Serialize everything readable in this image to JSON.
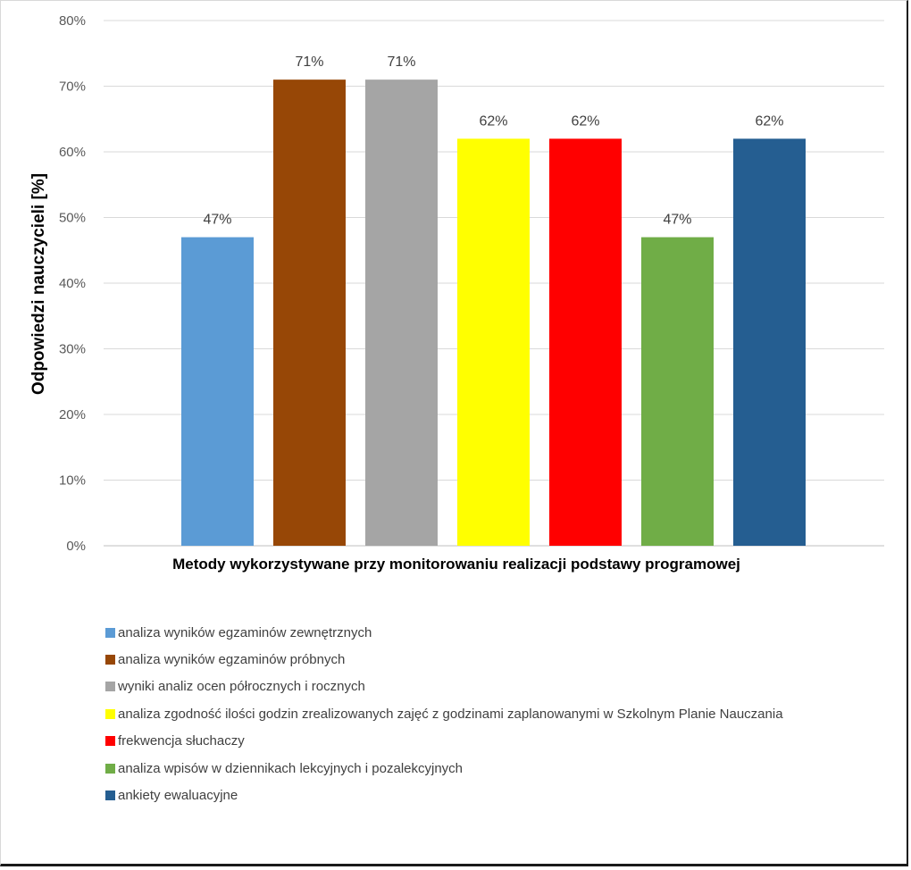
{
  "chart_data": {
    "type": "bar",
    "title": "",
    "xlabel": "Metody wykorzystywane przy monitorowaniu realizacji podstawy programowej",
    "ylabel": "Odpowiedzi nauczycieli [%]",
    "ylim": [
      0,
      80
    ],
    "yticks": [
      "0%",
      "10%",
      "20%",
      "30%",
      "40%",
      "50%",
      "60%",
      "70%",
      "80%"
    ],
    "grid": true,
    "legend_position": "bottom",
    "categories": [
      "analiza wyników egzaminów zewnętrznych",
      "analiza wyników egzaminów próbnych",
      "wyniki analiz ocen półrocznych i rocznych",
      "analiza zgodność ilości godzin zrealizowanych zajęć z godzinami zaplanowanymi w Szkolnym Planie Nauczania",
      "frekwencja słuchaczy",
      "analiza wpisów w dziennikach lekcyjnych i pozalekcyjnych",
      "ankiety ewaluacyjne"
    ],
    "values": [
      47,
      71,
      71,
      62,
      62,
      47,
      62
    ],
    "data_labels": [
      "47%",
      "71%",
      "71%",
      "62%",
      "62%",
      "47%",
      "62%"
    ],
    "colors": [
      "#5b9bd5",
      "#974706",
      "#a5a5a5",
      "#ffff00",
      "#ff0000",
      "#70ad47",
      "#255e91"
    ]
  }
}
